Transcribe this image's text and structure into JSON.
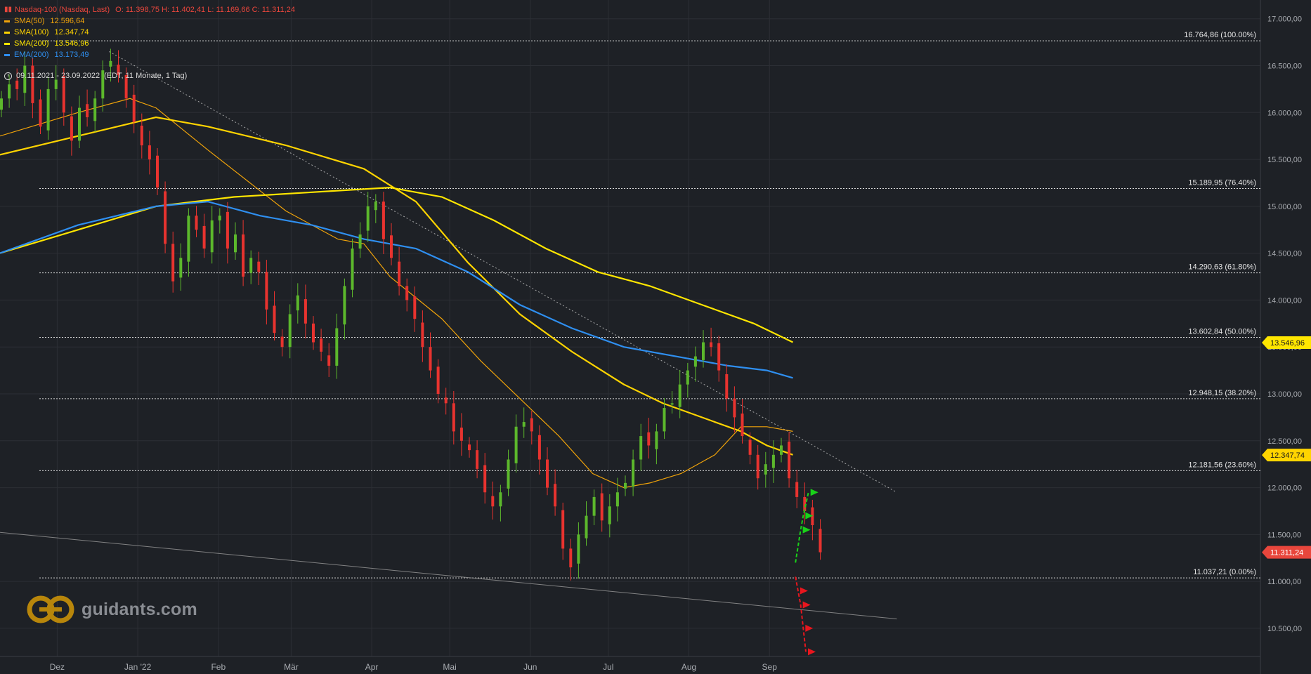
{
  "header": {
    "title": "Nasdaq-100 (Nasdaq, Last)",
    "ohlc": "O: 11.398,75  H: 11.402,41  L: 11.169,66  C: 11.311,24",
    "indicators": [
      {
        "label": "SMA(50)",
        "value": "12.596,64",
        "color": "#f0a30a"
      },
      {
        "label": "SMA(100)",
        "value": "12.347,74",
        "color": "#ffd400"
      },
      {
        "label": "SMA(200)",
        "value": "13.546,96",
        "color": "#ffe600"
      },
      {
        "label": "EMA(200)",
        "value": "13.173,49",
        "color": "#2f8ff0"
      }
    ],
    "range": "09.11.2021 - 23.09.2022",
    "range_detail": "(EDT, 11 Monate, 1 Tag)"
  },
  "logo": {
    "text": "guidants.com"
  },
  "chart_data": {
    "type": "candlestick",
    "title": "Nasdaq-100 (Nasdaq, Last)",
    "period": "09.11.2021 - 23.09.2022",
    "y_axis": {
      "range": [
        10200,
        17200
      ],
      "ticks": [
        "17.000,00",
        "16.500,00",
        "16.000,00",
        "15.500,00",
        "15.000,00",
        "14.500,00",
        "14.000,00",
        "13.500,00",
        "13.000,00",
        "12.500,00",
        "12.000,00",
        "11.500,00",
        "11.000,00",
        "10.500,00"
      ],
      "tick_values": [
        17000,
        16500,
        16000,
        15500,
        15000,
        14500,
        14000,
        13500,
        13000,
        12500,
        12000,
        11500,
        11000,
        10500
      ]
    },
    "x_axis": {
      "labels": [
        "Dez",
        "Jan '22",
        "Feb",
        "Mär",
        "Apr",
        "Mai",
        "Jun",
        "Jul",
        "Aug",
        "Sep"
      ],
      "label_days": [
        22,
        53,
        84,
        112,
        143,
        173,
        204,
        234,
        265,
        296
      ]
    },
    "fibonacci_levels": [
      {
        "value": 16764.86,
        "label": "16.764,86 (100.00%)"
      },
      {
        "value": 15189.95,
        "label": "15.189,95 (76.40%)"
      },
      {
        "value": 14290.63,
        "label": "14.290,63 (61.80%)"
      },
      {
        "value": 13602.84,
        "label": "13.602,84 (50.00%)"
      },
      {
        "value": 12948.15,
        "label": "12.948,15 (38.20%)"
      },
      {
        "value": 12181.56,
        "label": "12.181,56 (23.60%)"
      },
      {
        "value": 11037.21,
        "label": "11.037,21 (0.00%)"
      }
    ],
    "price_tags": [
      {
        "value": 13546.96,
        "label": "13.546,96",
        "color": "#ffe600",
        "text_color": "#1a1a1a"
      },
      {
        "value": 12347.74,
        "label": "12.347,74",
        "color": "#ffd400",
        "text_color": "#1a1a1a"
      },
      {
        "value": 11311.24,
        "label": "11.311,24",
        "color": "#e8463c",
        "text_color": "#ffffff"
      }
    ],
    "closes": [
      [
        0,
        16150
      ],
      [
        3,
        16300
      ],
      [
        6,
        16250
      ],
      [
        9,
        16500
      ],
      [
        12,
        16100
      ],
      [
        15,
        15850
      ],
      [
        18,
        16250
      ],
      [
        21,
        16350
      ],
      [
        24,
        16000
      ],
      [
        27,
        15700
      ],
      [
        30,
        16050
      ],
      [
        33,
        15950
      ],
      [
        36,
        16150
      ],
      [
        39,
        16450
      ],
      [
        42,
        16550
      ],
      [
        45,
        16400
      ],
      [
        48,
        16150
      ],
      [
        51,
        15900
      ],
      [
        54,
        15650
      ],
      [
        57,
        15500
      ],
      [
        60,
        15200
      ],
      [
        63,
        14600
      ],
      [
        66,
        14200
      ],
      [
        69,
        14450
      ],
      [
        72,
        14900
      ],
      [
        75,
        14750
      ],
      [
        78,
        14550
      ],
      [
        81,
        14850
      ],
      [
        84,
        14900
      ],
      [
        87,
        14550
      ],
      [
        90,
        14700
      ],
      [
        93,
        14250
      ],
      [
        96,
        14450
      ],
      [
        99,
        14300
      ],
      [
        102,
        13900
      ],
      [
        105,
        13650
      ],
      [
        108,
        13500
      ],
      [
        111,
        13850
      ],
      [
        114,
        14050
      ],
      [
        117,
        13750
      ],
      [
        120,
        13550
      ],
      [
        123,
        13450
      ],
      [
        126,
        13300
      ],
      [
        129,
        13700
      ],
      [
        132,
        14150
      ],
      [
        135,
        14550
      ],
      [
        138,
        14700
      ],
      [
        141,
        15000
      ],
      [
        144,
        15050
      ],
      [
        147,
        14650
      ],
      [
        150,
        14450
      ],
      [
        153,
        14150
      ],
      [
        156,
        14000
      ],
      [
        159,
        13800
      ],
      [
        162,
        13500
      ],
      [
        165,
        13250
      ],
      [
        168,
        13000
      ],
      [
        171,
        12900
      ],
      [
        174,
        12600
      ],
      [
        177,
        12500
      ],
      [
        180,
        12400
      ],
      [
        183,
        12200
      ],
      [
        186,
        11950
      ],
      [
        189,
        11800
      ],
      [
        192,
        11950
      ],
      [
        195,
        12300
      ],
      [
        198,
        12650
      ],
      [
        201,
        12700
      ],
      [
        204,
        12600
      ],
      [
        207,
        12300
      ],
      [
        210,
        12000
      ],
      [
        213,
        11800
      ],
      [
        216,
        11350
      ],
      [
        219,
        11150
      ],
      [
        222,
        11500
      ],
      [
        225,
        11700
      ],
      [
        228,
        11900
      ],
      [
        231,
        11650
      ],
      [
        234,
        11800
      ],
      [
        237,
        11950
      ],
      [
        240,
        12050
      ],
      [
        243,
        12300
      ],
      [
        246,
        12550
      ],
      [
        249,
        12450
      ],
      [
        252,
        12600
      ],
      [
        255,
        12850
      ],
      [
        258,
        12900
      ],
      [
        261,
        13100
      ],
      [
        264,
        13250
      ],
      [
        267,
        13400
      ],
      [
        270,
        13550
      ],
      [
        273,
        13500
      ],
      [
        276,
        13250
      ],
      [
        279,
        12950
      ],
      [
        282,
        12750
      ],
      [
        285,
        12550
      ],
      [
        288,
        12350
      ],
      [
        291,
        12100
      ],
      [
        294,
        12250
      ],
      [
        297,
        12350
      ],
      [
        300,
        12450
      ],
      [
        303,
        12100
      ],
      [
        306,
        11900
      ],
      [
        309,
        11750
      ],
      [
        312,
        11600
      ],
      [
        315,
        11311
      ]
    ],
    "series": [
      {
        "name": "SMA(50)",
        "color": "#f0a30a",
        "points": [
          [
            0,
            15750
          ],
          [
            30,
            16000
          ],
          [
            50,
            16150
          ],
          [
            60,
            16050
          ],
          [
            80,
            15600
          ],
          [
            110,
            14950
          ],
          [
            130,
            14650
          ],
          [
            140,
            14600
          ],
          [
            150,
            14250
          ],
          [
            170,
            13800
          ],
          [
            185,
            13350
          ],
          [
            200,
            12950
          ],
          [
            215,
            12550
          ],
          [
            228,
            12150
          ],
          [
            240,
            12000
          ],
          [
            250,
            12050
          ],
          [
            262,
            12150
          ],
          [
            275,
            12350
          ],
          [
            285,
            12650
          ],
          [
            295,
            12650
          ],
          [
            305,
            12600
          ]
        ]
      },
      {
        "name": "SMA(100)",
        "color": "#ffd400",
        "points": [
          [
            0,
            15550
          ],
          [
            30,
            15750
          ],
          [
            60,
            15950
          ],
          [
            80,
            15850
          ],
          [
            110,
            15650
          ],
          [
            140,
            15400
          ],
          [
            160,
            15050
          ],
          [
            180,
            14400
          ],
          [
            200,
            13850
          ],
          [
            220,
            13450
          ],
          [
            240,
            13100
          ],
          [
            255,
            12900
          ],
          [
            270,
            12750
          ],
          [
            285,
            12600
          ],
          [
            295,
            12450
          ],
          [
            305,
            12350
          ]
        ]
      },
      {
        "name": "SMA(200)",
        "color": "#ffe600",
        "points": [
          [
            0,
            14500
          ],
          [
            30,
            14750
          ],
          [
            60,
            15000
          ],
          [
            90,
            15100
          ],
          [
            120,
            15150
          ],
          [
            150,
            15200
          ],
          [
            170,
            15100
          ],
          [
            190,
            14850
          ],
          [
            210,
            14550
          ],
          [
            230,
            14300
          ],
          [
            250,
            14150
          ],
          [
            270,
            13950
          ],
          [
            290,
            13750
          ],
          [
            305,
            13550
          ]
        ]
      },
      {
        "name": "EMA(200)",
        "color": "#2f8ff0",
        "points": [
          [
            0,
            14500
          ],
          [
            30,
            14800
          ],
          [
            60,
            15000
          ],
          [
            80,
            15050
          ],
          [
            100,
            14900
          ],
          [
            120,
            14800
          ],
          [
            140,
            14650
          ],
          [
            160,
            14550
          ],
          [
            180,
            14300
          ],
          [
            200,
            13950
          ],
          [
            220,
            13700
          ],
          [
            240,
            13500
          ],
          [
            260,
            13400
          ],
          [
            280,
            13300
          ],
          [
            295,
            13250
          ],
          [
            305,
            13170
          ]
        ]
      }
    ],
    "trendlines": [
      {
        "from": [
          42,
          16650
        ],
        "to": [
          345,
          11950
        ],
        "color": "#c8c8c8",
        "dashed": true
      },
      {
        "from": [
          -10,
          11550
        ],
        "to": [
          345,
          10600
        ],
        "color": "#9a9a9a",
        "dashed": false
      }
    ],
    "scenario_paths": [
      {
        "name": "bullish",
        "color": "#19d219",
        "points": [
          [
            306,
            11200
          ],
          [
            308,
            11550
          ],
          [
            309,
            11700
          ],
          [
            311,
            11950
          ]
        ]
      },
      {
        "name": "bearish",
        "color": "#e8161e",
        "points": [
          [
            306,
            11050
          ],
          [
            307,
            10900
          ],
          [
            308,
            10750
          ],
          [
            309,
            10500
          ],
          [
            310,
            10250
          ]
        ]
      }
    ]
  }
}
